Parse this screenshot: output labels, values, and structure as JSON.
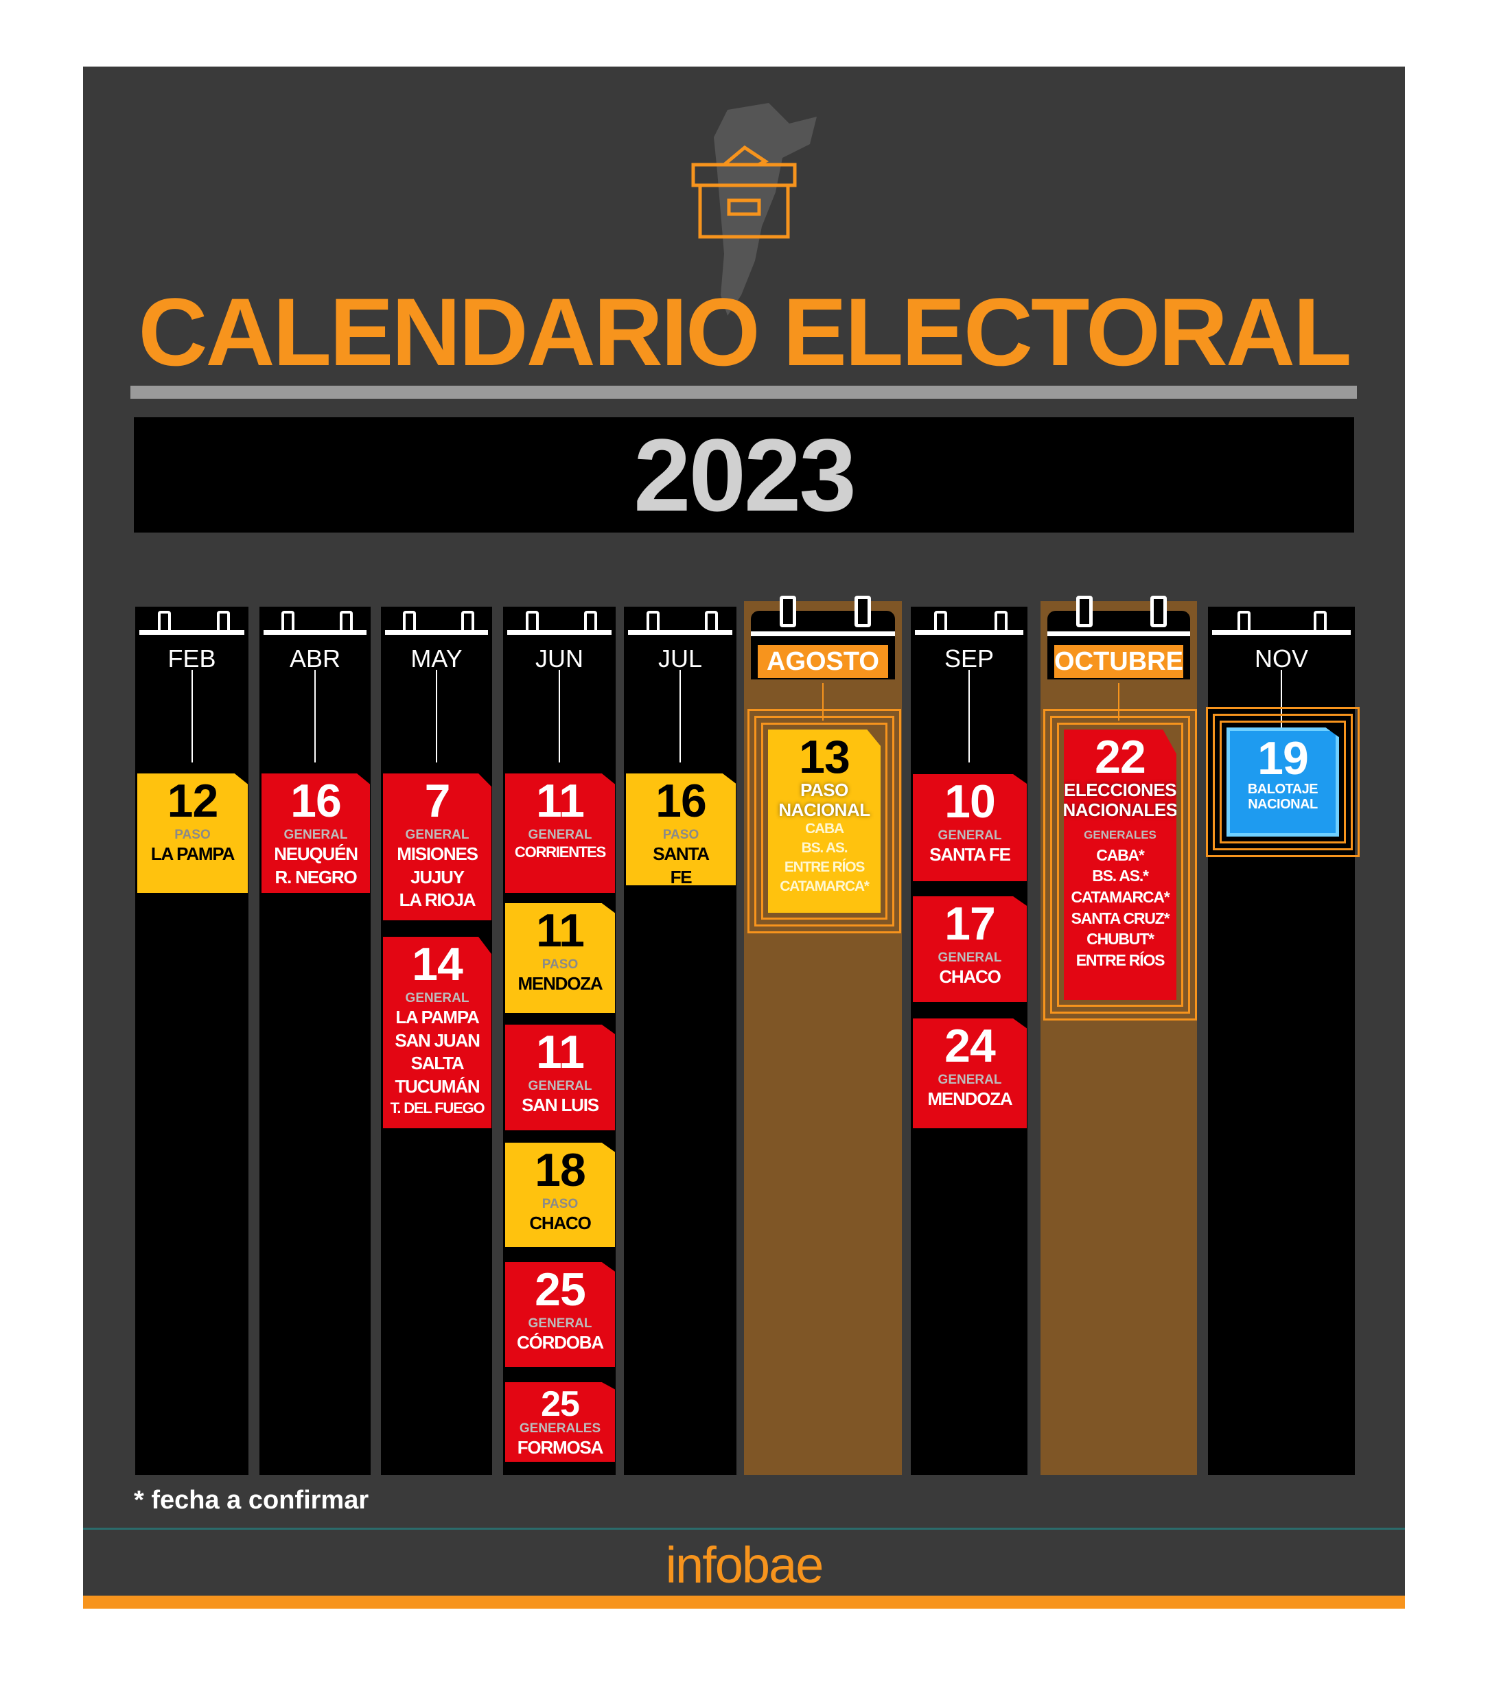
{
  "header": {
    "title": "CALENDARIO ELECTORAL",
    "year": "2023",
    "icon": "ballot-box-icon"
  },
  "colors": {
    "panel": "#3a3a3a",
    "accent": "#f7941d",
    "general": "#e30613",
    "paso": "#ffc20e",
    "balotaje": "#1e9bf0",
    "highlight_column": "#7f5626"
  },
  "columns": [
    {
      "month": "FEB",
      "highlight": false,
      "cards": [
        {
          "day": "12",
          "type": "PASO",
          "color": "yellow",
          "places": [
            "LA PAMPA"
          ]
        }
      ]
    },
    {
      "month": "ABR",
      "highlight": false,
      "cards": [
        {
          "day": "16",
          "type": "GENERAL",
          "color": "red",
          "places": [
            "NEUQUÉN",
            "R. NEGRO"
          ]
        }
      ]
    },
    {
      "month": "MAY",
      "highlight": false,
      "cards": [
        {
          "day": "7",
          "type": "GENERAL",
          "color": "red",
          "places": [
            "MISIONES",
            "JUJUY",
            "LA RIOJA"
          ]
        },
        {
          "day": "14",
          "type": "GENERAL",
          "color": "red",
          "places": [
            "LA PAMPA",
            "SAN JUAN",
            "SALTA",
            "TUCUMÁN",
            "T. DEL FUEGO"
          ]
        }
      ]
    },
    {
      "month": "JUN",
      "highlight": false,
      "cards": [
        {
          "day": "11",
          "type": "GENERAL",
          "color": "red",
          "places": [
            "CORRIENTES"
          ]
        },
        {
          "day": "11",
          "type": "PASO",
          "color": "yellow",
          "places": [
            "MENDOZA"
          ]
        },
        {
          "day": "11",
          "type": "GENERAL",
          "color": "red",
          "places": [
            "SAN LUIS"
          ]
        },
        {
          "day": "18",
          "type": "PASO",
          "color": "yellow",
          "places": [
            "CHACO"
          ]
        },
        {
          "day": "25",
          "type": "GENERAL",
          "color": "red",
          "places": [
            "CÓRDOBA"
          ]
        },
        {
          "day": "25",
          "type": "GENERALES",
          "color": "red",
          "places": [
            "FORMOSA"
          ]
        }
      ]
    },
    {
      "month": "JUL",
      "highlight": false,
      "cards": [
        {
          "day": "16",
          "type": "PASO",
          "color": "yellow",
          "places": [
            "SANTA",
            "FE"
          ]
        }
      ]
    },
    {
      "month": "AGOSTO",
      "highlight": true,
      "cards": [
        {
          "day": "13",
          "heading": [
            "PASO",
            "NACIONAL"
          ],
          "color": "yellow",
          "places": [
            "CABA",
            "BS. AS.",
            "ENTRE RÍOS",
            "CATAMARCA*"
          ]
        }
      ]
    },
    {
      "month": "SEP",
      "highlight": false,
      "cards": [
        {
          "day": "10",
          "type": "GENERAL",
          "color": "red",
          "places": [
            "SANTA FE"
          ]
        },
        {
          "day": "17",
          "type": "GENERAL",
          "color": "red",
          "places": [
            "CHACO"
          ]
        },
        {
          "day": "24",
          "type": "GENERAL",
          "color": "red",
          "places": [
            "MENDOZA"
          ]
        }
      ]
    },
    {
      "month": "OCTUBRE",
      "highlight": true,
      "cards": [
        {
          "day": "22",
          "heading": [
            "ELECCIONES",
            "NACIONALES"
          ],
          "type": "GENERALES",
          "color": "red",
          "places": [
            "CABA*",
            "BS. AS.*",
            "CATAMARCA*",
            "SANTA CRUZ*",
            "CHUBUT*",
            "ENTRE RÍOS"
          ]
        }
      ]
    },
    {
      "month": "NOV",
      "highlight": false,
      "cards": [
        {
          "day": "19",
          "heading": [
            "BALOTAJE",
            "NACIONAL"
          ],
          "color": "blue",
          "places": []
        }
      ]
    }
  ],
  "footnote": "* fecha a confirmar",
  "brand": "infobae"
}
